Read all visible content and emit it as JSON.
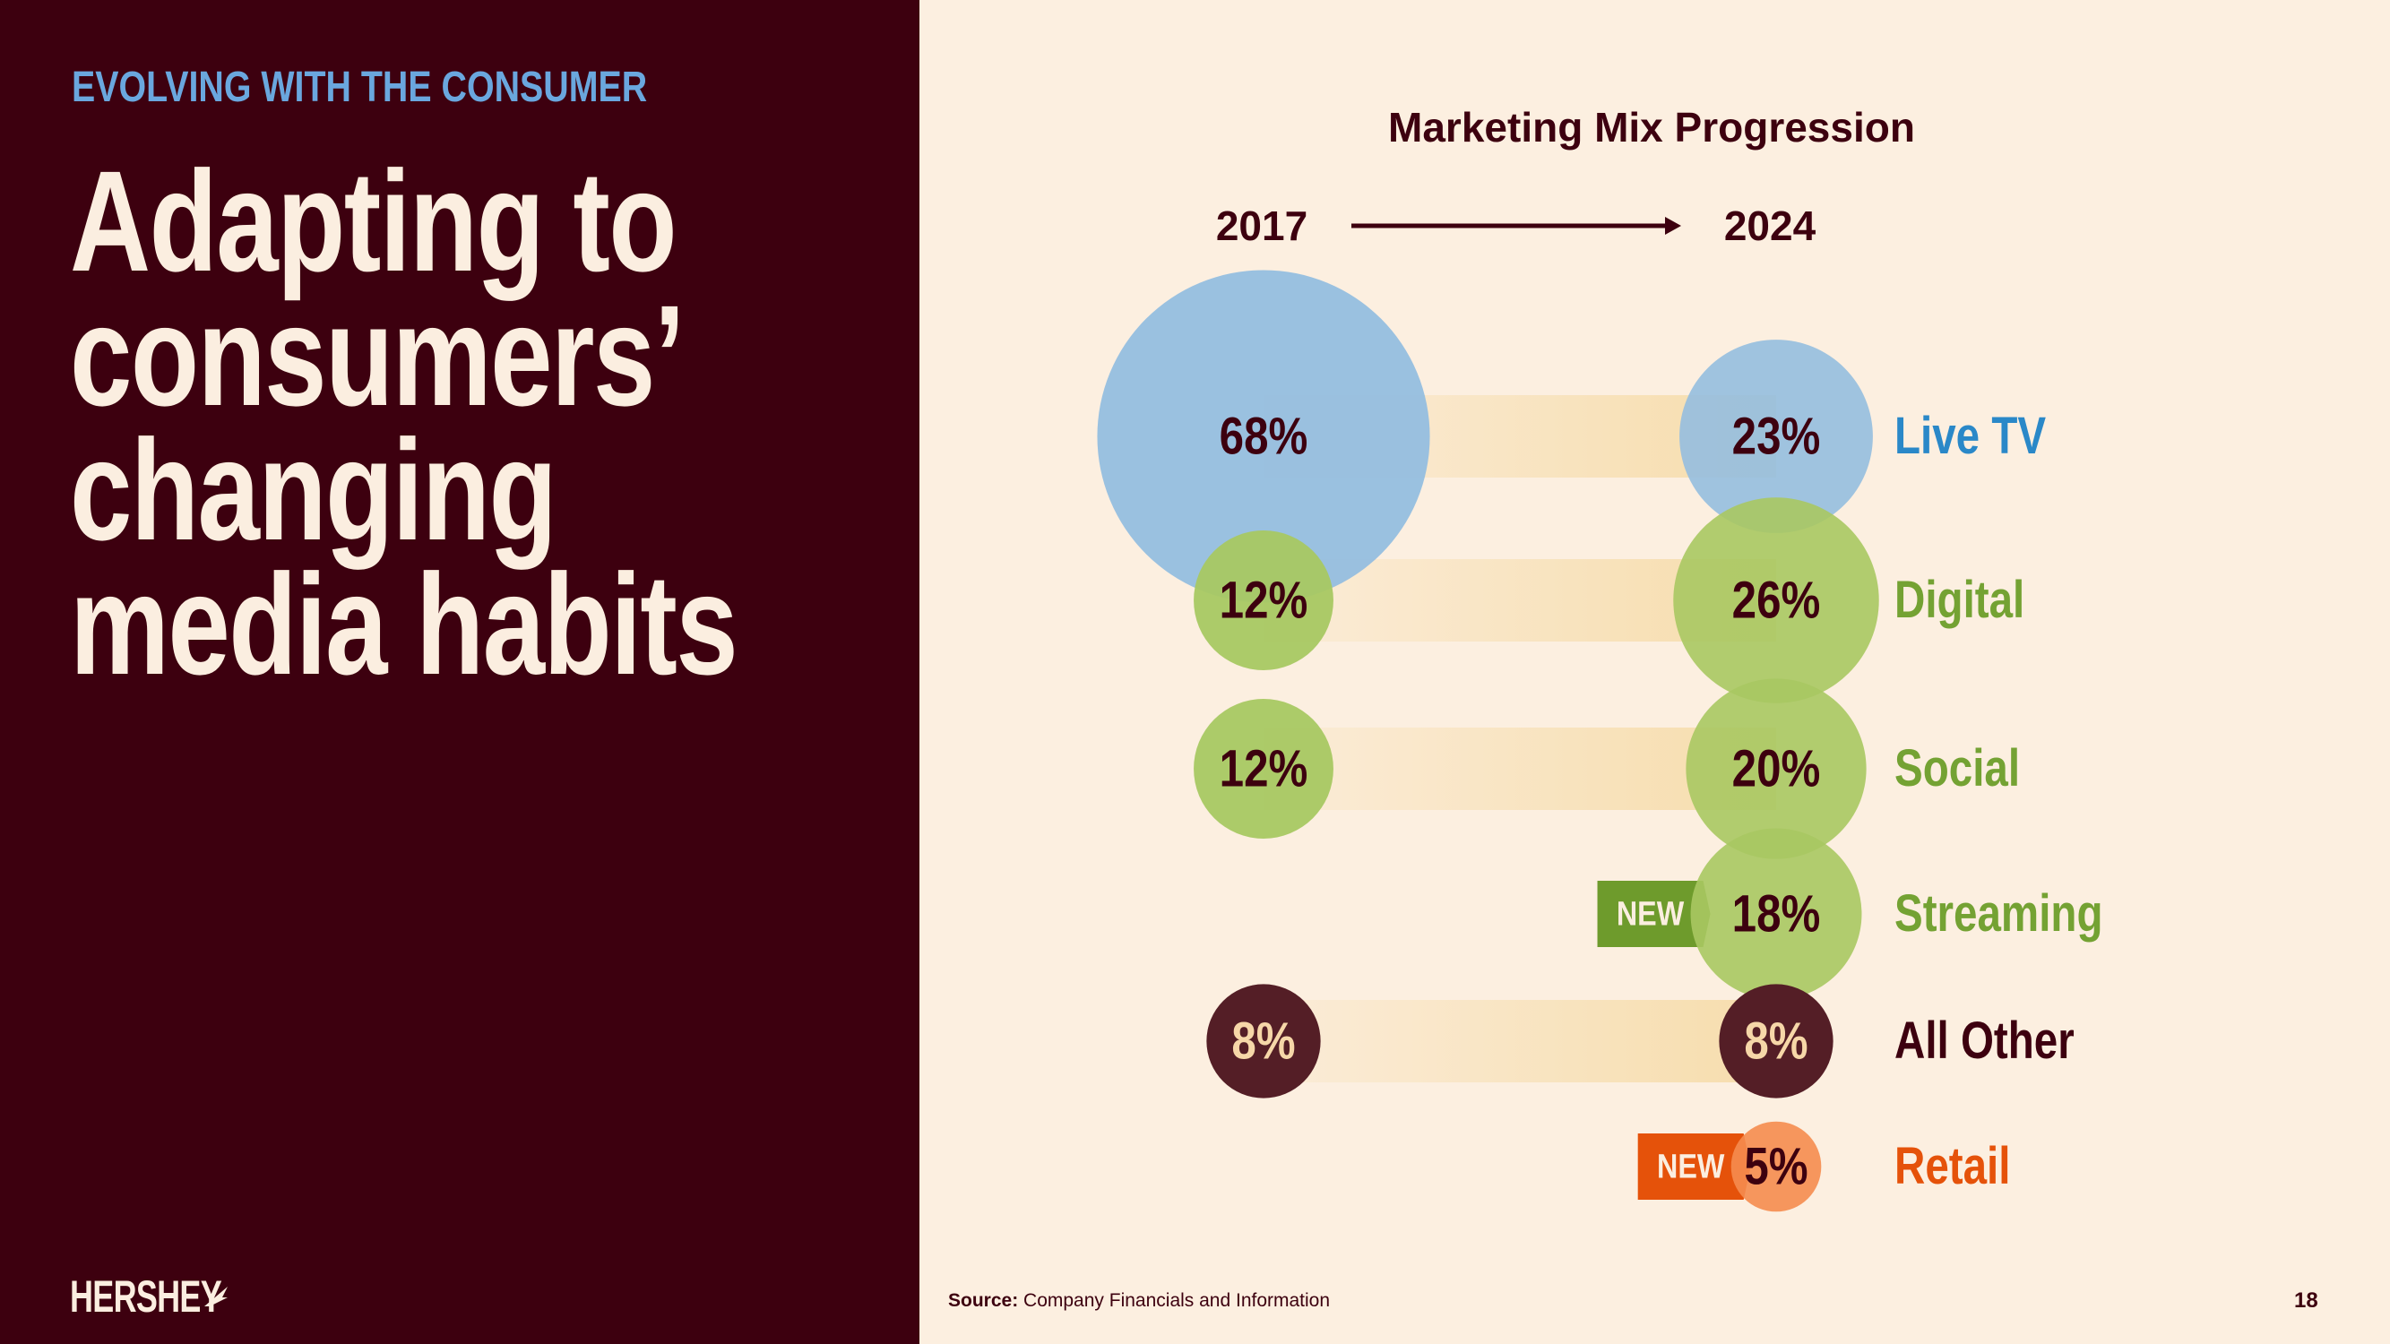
{
  "slide": {
    "eyebrow": "EVOLVING WITH THE CONSUMER",
    "headline_lines": [
      "Adapting to",
      "consumers’",
      "changing",
      "media habits"
    ],
    "brand": "HERSHEY",
    "source_label": "Source:",
    "source_text": "Company Financials and Information",
    "page_number": "18"
  },
  "colors": {
    "left_bg": "#3d000f",
    "right_bg": "#fcefe0",
    "live_tv": "#95bedf",
    "digital": "#a8c862",
    "all_other": "#541e26",
    "retail": "#f58c4f",
    "new_green": "#6e9b2c",
    "new_orange": "#e5520a",
    "label_blue": "#2a88c8",
    "label_green": "#74a233",
    "label_dark": "#3d000f",
    "label_orange": "#e5520a",
    "connector": "#f6dcaa"
  },
  "chart_data": {
    "type": "bubble-comparison",
    "title": "Marketing Mix Progression",
    "from_year": "2017",
    "to_year": "2024",
    "unit": "%",
    "categories": [
      {
        "name": "Live TV",
        "value_2017": 68,
        "value_2024": 23,
        "label_2017": "68%",
        "label_2024": "23%",
        "color": "live_tv",
        "label_color": "label_blue",
        "is_new": false
      },
      {
        "name": "Digital",
        "value_2017": 12,
        "value_2024": 26,
        "label_2017": "12%",
        "label_2024": "26%",
        "color": "digital",
        "label_color": "label_green",
        "is_new": false
      },
      {
        "name": "Social",
        "value_2017": 12,
        "value_2024": 20,
        "label_2017": "12%",
        "label_2024": "20%",
        "color": "digital",
        "label_color": "label_green",
        "is_new": false
      },
      {
        "name": "Streaming",
        "value_2017": null,
        "value_2024": 18,
        "label_2017": null,
        "label_2024": "18%",
        "color": "digital",
        "label_color": "label_green",
        "is_new": true,
        "new_color": "new_green"
      },
      {
        "name": "All Other",
        "value_2017": 8,
        "value_2024": 8,
        "label_2017": "8%",
        "label_2024": "8%",
        "color": "all_other",
        "label_color": "label_dark",
        "is_new": false
      },
      {
        "name": "Retail",
        "value_2017": null,
        "value_2024": 5,
        "label_2017": null,
        "label_2024": "5%",
        "color": "retail",
        "label_color": "label_orange",
        "is_new": true,
        "new_color": "new_orange"
      }
    ],
    "new_badge": "NEW"
  }
}
